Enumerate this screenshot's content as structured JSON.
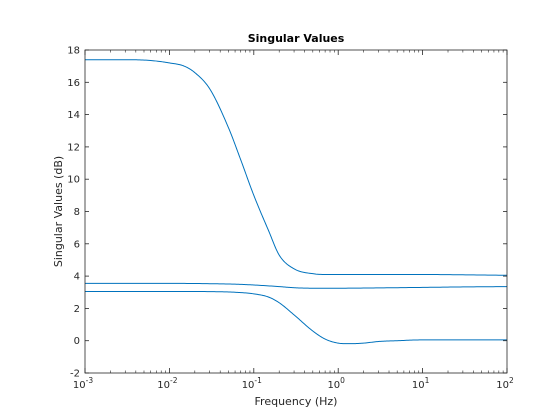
{
  "chart_data": {
    "type": "line",
    "title": "Singular Values",
    "xlabel": "Frequency (Hz)",
    "ylabel": "Singular Values (dB)",
    "xscale": "log",
    "xlim": [
      0.001,
      100
    ],
    "ylim": [
      -2,
      18
    ],
    "xticks": [
      0.001,
      0.01,
      0.1,
      1,
      10,
      100
    ],
    "xtick_labels": [
      {
        "base": "10",
        "exp": "-3"
      },
      {
        "base": "10",
        "exp": "-2"
      },
      {
        "base": "10",
        "exp": "-1"
      },
      {
        "base": "10",
        "exp": "0"
      },
      {
        "base": "10",
        "exp": "1"
      },
      {
        "base": "10",
        "exp": "2"
      }
    ],
    "yticks": [
      -2,
      0,
      2,
      4,
      6,
      8,
      10,
      12,
      14,
      16,
      18
    ],
    "grid": false,
    "color": "#0072BD",
    "series": [
      {
        "x": [
          0.001,
          0.003,
          0.006,
          0.01,
          0.015,
          0.02,
          0.03,
          0.05,
          0.07,
          0.1,
          0.15,
          0.2,
          0.3,
          0.5,
          1,
          3,
          10,
          30,
          100
        ],
        "values": [
          17.4,
          17.4,
          17.35,
          17.2,
          17.0,
          16.6,
          15.6,
          13.2,
          11.2,
          9.0,
          6.8,
          5.3,
          4.45,
          4.15,
          4.1,
          4.1,
          4.1,
          4.08,
          4.05
        ]
      },
      {
        "x": [
          0.001,
          0.01,
          0.03,
          0.06,
          0.1,
          0.2,
          0.3,
          0.5,
          1,
          3,
          10,
          30,
          100
        ],
        "values": [
          3.55,
          3.55,
          3.53,
          3.5,
          3.45,
          3.35,
          3.28,
          3.25,
          3.25,
          3.27,
          3.3,
          3.33,
          3.35
        ]
      },
      {
        "x": [
          0.001,
          0.01,
          0.03,
          0.06,
          0.1,
          0.15,
          0.2,
          0.3,
          0.5,
          0.7,
          1,
          1.5,
          2,
          3,
          5,
          10,
          30,
          100
        ],
        "values": [
          3.05,
          3.05,
          3.04,
          3.0,
          2.9,
          2.7,
          2.35,
          1.6,
          0.6,
          0.1,
          -0.15,
          -0.18,
          -0.15,
          -0.05,
          0.0,
          0.05,
          0.05,
          0.05
        ]
      }
    ]
  }
}
